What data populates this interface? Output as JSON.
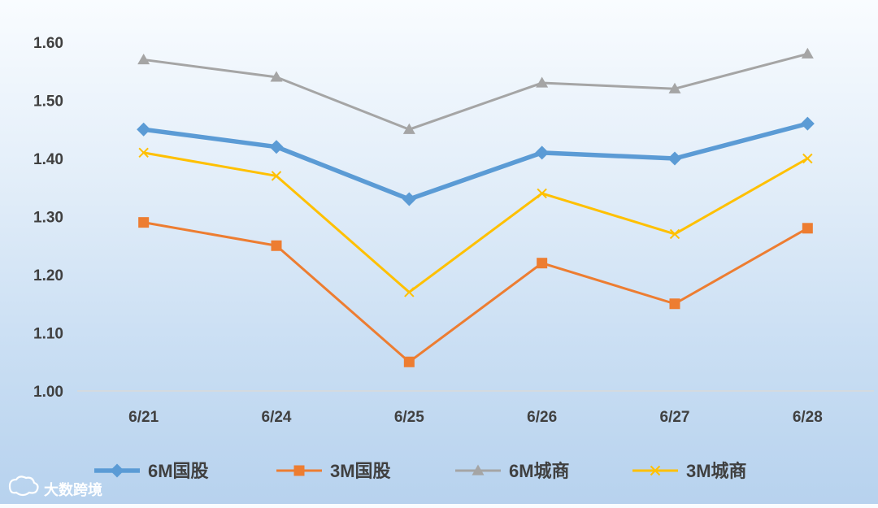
{
  "chart_data": {
    "type": "line",
    "title": "",
    "xlabel": "",
    "ylabel": "",
    "categories": [
      "6/21",
      "6/24",
      "6/25",
      "6/26",
      "6/27",
      "6/28"
    ],
    "ylim": [
      1.0,
      1.6
    ],
    "yticks": [
      "1.00",
      "1.10",
      "1.20",
      "1.30",
      "1.40",
      "1.50",
      "1.60"
    ],
    "grid": false,
    "legend": "bottom",
    "series": [
      {
        "name": "6M国股",
        "values": [
          1.45,
          1.42,
          1.33,
          1.41,
          1.4,
          1.46
        ],
        "color": "#5b9bd5",
        "marker": "diamond"
      },
      {
        "name": "3M国股",
        "values": [
          1.29,
          1.25,
          1.05,
          1.22,
          1.15,
          1.28
        ],
        "color": "#ed7d31",
        "marker": "square"
      },
      {
        "name": "6M城商",
        "values": [
          1.57,
          1.54,
          1.45,
          1.53,
          1.52,
          1.58
        ],
        "color": "#a5a5a5",
        "marker": "triangle"
      },
      {
        "name": "3M城商",
        "values": [
          1.41,
          1.37,
          1.17,
          1.34,
          1.27,
          1.4
        ],
        "color": "#ffc000",
        "marker": "x"
      }
    ]
  },
  "watermark": {
    "text": "大数跨境",
    "icon": "cloud-logo-icon"
  }
}
